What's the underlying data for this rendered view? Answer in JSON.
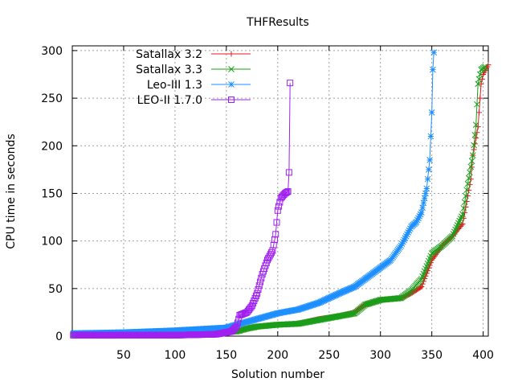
{
  "chart_data": {
    "type": "line",
    "title": "THFResults",
    "xlabel": "Solution number",
    "ylabel": "CPU time in seconds",
    "xlim": [
      0,
      405
    ],
    "ylim": [
      0,
      305
    ],
    "xticks": [
      50,
      100,
      150,
      200,
      250,
      300,
      350,
      400
    ],
    "yticks": [
      0,
      50,
      100,
      150,
      200,
      250,
      300
    ],
    "grid": true,
    "legend_position": "top-left",
    "series": [
      {
        "name": "Satallax 3.2",
        "color": "#e41a1c",
        "marker": "plus",
        "anchors": [
          [
            1,
            2
          ],
          [
            100,
            3
          ],
          [
            160,
            5
          ],
          [
            170,
            8
          ],
          [
            180,
            10
          ],
          [
            200,
            12
          ],
          [
            220,
            13
          ],
          [
            240,
            18
          ],
          [
            260,
            21
          ],
          [
            275,
            25
          ],
          [
            285,
            33
          ],
          [
            300,
            38
          ],
          [
            320,
            40
          ],
          [
            330,
            45
          ],
          [
            340,
            52
          ],
          [
            350,
            80
          ],
          [
            360,
            95
          ],
          [
            370,
            105
          ],
          [
            380,
            118
          ],
          [
            388,
            165
          ],
          [
            390,
            190
          ],
          [
            395,
            220
          ],
          [
            398,
            265
          ],
          [
            400,
            275
          ],
          [
            405,
            285
          ]
        ]
      },
      {
        "name": "Satallax 3.3",
        "color": "#1a9e1a",
        "marker": "x",
        "anchors": [
          [
            1,
            2
          ],
          [
            100,
            3
          ],
          [
            160,
            5
          ],
          [
            170,
            8
          ],
          [
            180,
            10
          ],
          [
            200,
            12
          ],
          [
            220,
            13
          ],
          [
            240,
            17
          ],
          [
            260,
            21
          ],
          [
            275,
            24
          ],
          [
            285,
            33
          ],
          [
            300,
            38
          ],
          [
            320,
            40
          ],
          [
            330,
            48
          ],
          [
            340,
            60
          ],
          [
            350,
            87
          ],
          [
            360,
            95
          ],
          [
            370,
            105
          ],
          [
            380,
            128
          ],
          [
            385,
            160
          ],
          [
            390,
            190
          ],
          [
            393,
            222
          ],
          [
            395,
            265
          ],
          [
            398,
            280
          ],
          [
            402,
            283
          ]
        ]
      },
      {
        "name": "Leo-III 1.3",
        "color": "#1e8fff",
        "marker": "star",
        "anchors": [
          [
            1,
            3
          ],
          [
            50,
            4
          ],
          [
            100,
            6
          ],
          [
            150,
            9
          ],
          [
            170,
            15
          ],
          [
            200,
            24
          ],
          [
            220,
            28
          ],
          [
            240,
            35
          ],
          [
            260,
            45
          ],
          [
            275,
            52
          ],
          [
            285,
            60
          ],
          [
            300,
            72
          ],
          [
            310,
            80
          ],
          [
            320,
            95
          ],
          [
            330,
            115
          ],
          [
            335,
            120
          ],
          [
            340,
            130
          ],
          [
            345,
            155
          ],
          [
            348,
            185
          ],
          [
            350,
            235
          ],
          [
            351,
            280
          ],
          [
            352,
            298
          ]
        ]
      },
      {
        "name": "LEO-II 1.7.0",
        "color": "#a020f0",
        "marker": "square",
        "anchors": [
          [
            1,
            1
          ],
          [
            100,
            1
          ],
          [
            140,
            2
          ],
          [
            155,
            5
          ],
          [
            160,
            10
          ],
          [
            163,
            22
          ],
          [
            170,
            25
          ],
          [
            175,
            32
          ],
          [
            180,
            45
          ],
          [
            185,
            65
          ],
          [
            190,
            80
          ],
          [
            195,
            90
          ],
          [
            198,
            107
          ],
          [
            200,
            132
          ],
          [
            203,
            145
          ],
          [
            207,
            150
          ],
          [
            210,
            152
          ],
          [
            211,
            172
          ],
          [
            212,
            266
          ]
        ]
      }
    ]
  }
}
